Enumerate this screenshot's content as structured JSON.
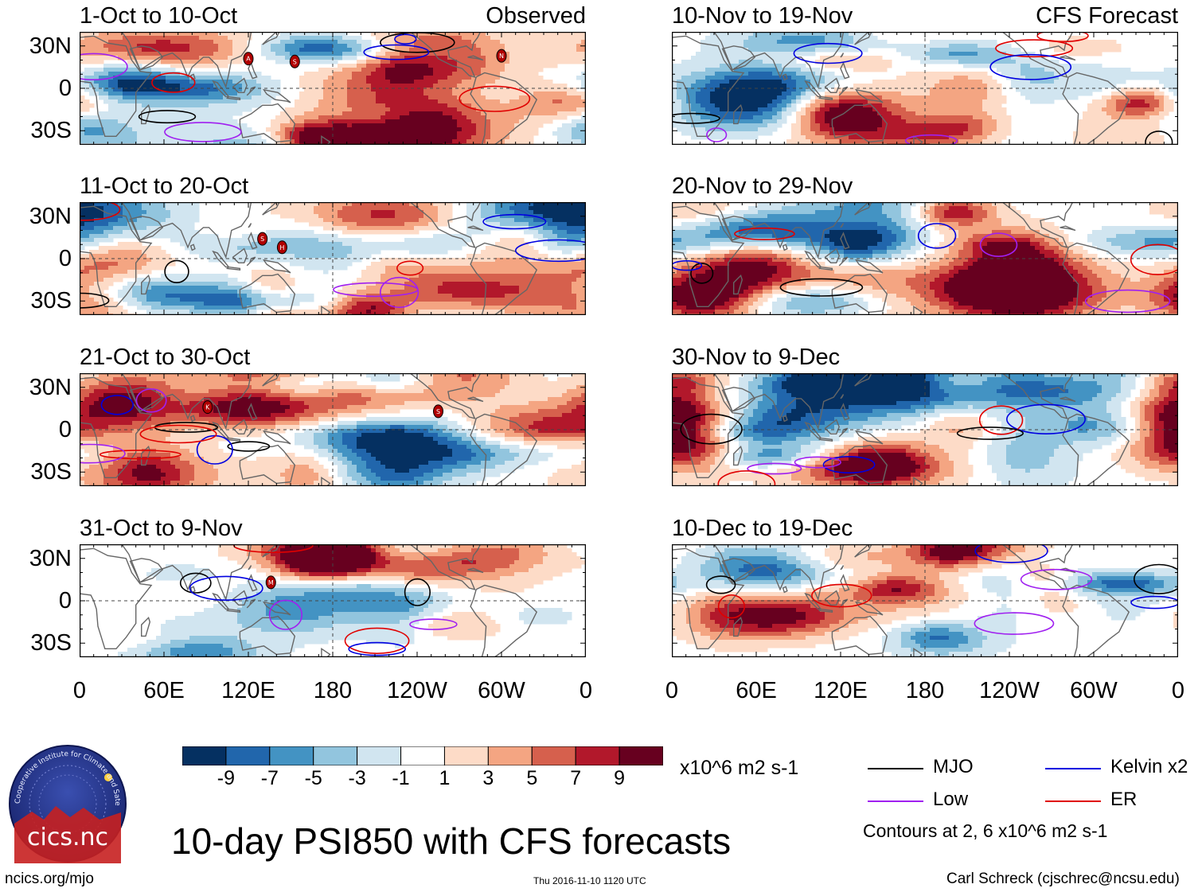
{
  "chart_data": {
    "type": "heatmap",
    "title": "10-day PSI850 with CFS forecasts",
    "units": "x10^6 m2 s-1",
    "latitude_ticks": [
      "30N",
      "0",
      "30S"
    ],
    "longitude_ticks": [
      "0",
      "60E",
      "120E",
      "180",
      "120W",
      "60W",
      "0"
    ],
    "colorbar": {
      "ticks": [
        "-9",
        "-7",
        "-5",
        "-3",
        "-1",
        "1",
        "3",
        "5",
        "7",
        "9"
      ],
      "colors": [
        "#053061",
        "#2166ac",
        "#4393c3",
        "#92c5de",
        "#d1e5f0",
        "#ffffff",
        "#fddbc7",
        "#f4a582",
        "#d6604d",
        "#b2182b",
        "#67001f"
      ]
    },
    "columns": [
      {
        "label": "Observed",
        "panels": [
          {
            "period": "1-Oct to 10-Oct",
            "storms": [
              {
                "letter": "A",
                "lon": 120,
                "lat": 21
              },
              {
                "letter": "S",
                "lon": 153,
                "lat": 19
              },
              {
                "letter": "N",
                "lon": 300,
                "lat": 23
              }
            ]
          },
          {
            "period": "11-Oct to 20-Oct",
            "storms": [
              {
                "letter": "S",
                "lon": 130,
                "lat": 14
              },
              {
                "letter": "H",
                "lon": 144,
                "lat": 8
              }
            ]
          },
          {
            "period": "21-Oct to 30-Oct",
            "storms": [
              {
                "letter": "K",
                "lon": 91,
                "lat": 16
              },
              {
                "letter": "S",
                "lon": 255,
                "lat": 13
              }
            ]
          },
          {
            "period": "31-Oct to 9-Nov",
            "storms": [
              {
                "letter": "M",
                "lon": 136,
                "lat": 13
              }
            ]
          }
        ]
      },
      {
        "label": "CFS Forecast",
        "panels": [
          {
            "period": "10-Nov to 19-Nov",
            "storms": []
          },
          {
            "period": "20-Nov to 29-Nov",
            "storms": []
          },
          {
            "period": "30-Nov to 9-Dec",
            "storms": []
          },
          {
            "period": "10-Dec to 19-Dec",
            "storms": []
          }
        ]
      }
    ],
    "contour_legend": [
      {
        "name": "MJO",
        "color": "#000000"
      },
      {
        "name": "Kelvin x2",
        "color": "#0000e0"
      },
      {
        "name": "Low",
        "color": "#a020f0"
      },
      {
        "name": "ER",
        "color": "#e00000"
      }
    ],
    "contour_note": "Contours at 2, 6 x10^6 m2 s-1"
  },
  "logo": {
    "text": "cics.nc",
    "ring_text": "Cooperative Institute for Climate and Satellites"
  },
  "footer": {
    "left": "ncics.org/mjo",
    "center": "Thu 2016-11-10 1120 UTC",
    "right": "Carl Schreck (cjschrec@ncsu.edu)"
  }
}
